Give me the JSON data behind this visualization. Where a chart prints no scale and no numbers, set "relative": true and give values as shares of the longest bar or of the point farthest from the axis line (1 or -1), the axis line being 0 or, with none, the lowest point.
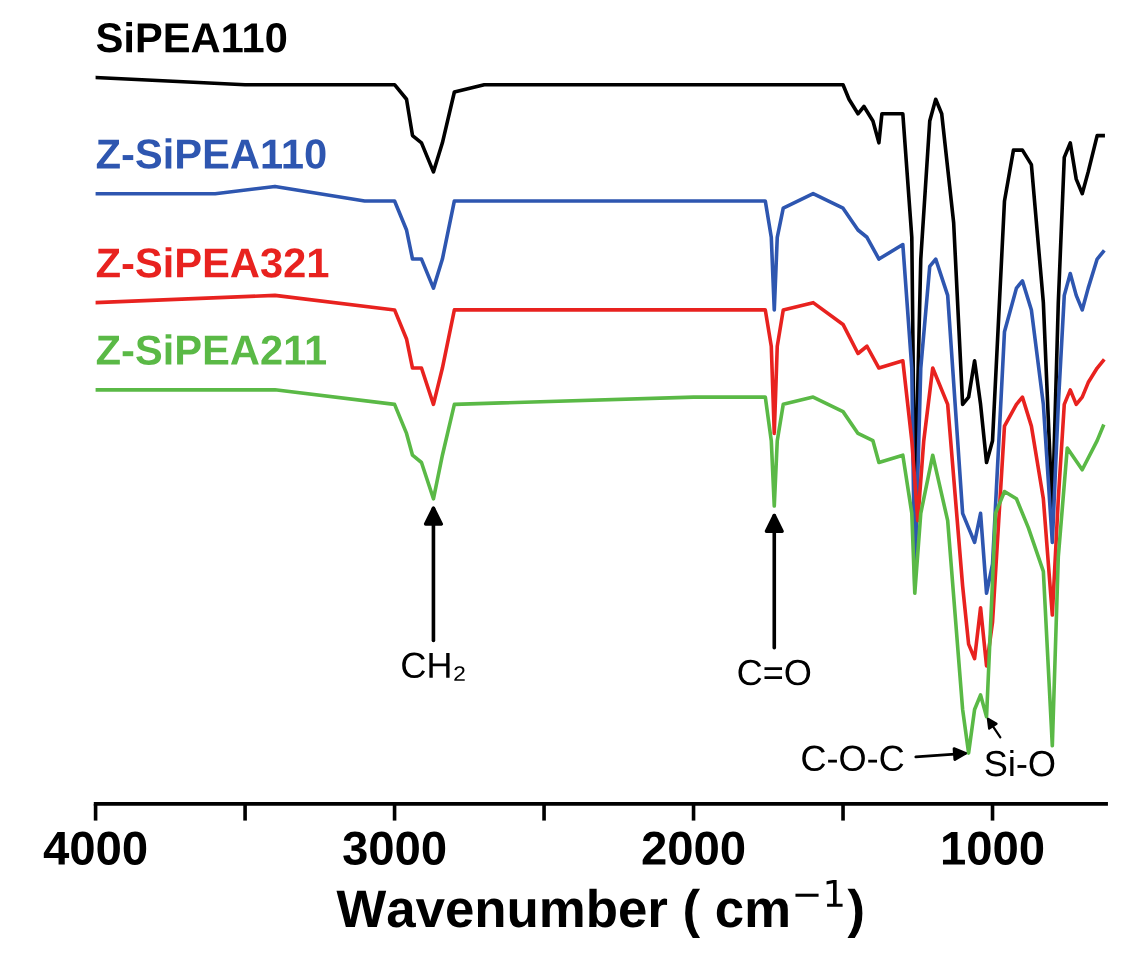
{
  "chart_data": {
    "type": "line",
    "relative": true,
    "xlabel": "Wavenumber ( cm$^{−1}$)",
    "xlim": [
      4000,
      620
    ],
    "xticks": [
      4000,
      {
        "value": 3500,
        "label": null
      },
      3000,
      {
        "value": 2500,
        "label": null
      },
      2000,
      {
        "value": 1500,
        "label": null
      },
      1000
    ],
    "tick_labels": "x",
    "grid": false,
    "legend": false,
    "x": [
      4000,
      3500,
      3000,
      2960,
      2940,
      2910,
      2870,
      2840,
      2800,
      2700,
      2000,
      1600,
      1500,
      1480,
      1450,
      1430,
      1400,
      1380,
      1370,
      1330,
      1300,
      1270,
      1260,
      1240,
      1210,
      1190,
      1170,
      1130,
      1100,
      1080,
      1060,
      1040,
      1020,
      1000,
      960,
      930,
      900,
      870,
      830,
      800,
      780,
      760,
      740,
      720,
      700,
      680,
      650,
      630
    ],
    "series": [
      {
        "name": "SiPEA110",
        "color": "#000000",
        "values": [
          1.0,
          0.99,
          0.99,
          0.97,
          0.92,
          0.91,
          0.87,
          0.91,
          0.98,
          0.99,
          0.99,
          0.99,
          0.99,
          0.97,
          0.95,
          0.96,
          0.94,
          0.91,
          0.95,
          0.95,
          0.95,
          0.78,
          0.4,
          0.75,
          0.94,
          0.97,
          0.95,
          0.8,
          0.55,
          0.56,
          0.61,
          0.55,
          0.47,
          0.5,
          0.83,
          0.9,
          0.9,
          0.88,
          0.69,
          0.4,
          0.69,
          0.89,
          0.91,
          0.86,
          0.84,
          0.87,
          0.92,
          0.92
        ]
      },
      {
        "name": "Z-SiPEA110",
        "color": "#2e56b0",
        "x": [
          4000,
          3600,
          3400,
          3100,
          3000,
          2960,
          2940,
          2910,
          2870,
          2840,
          2800,
          2700,
          2000,
          1760,
          1740,
          1730,
          1720,
          1700,
          1650,
          1600,
          1550,
          1500,
          1450,
          1420,
          1380,
          1300,
          1270,
          1260,
          1240,
          1210,
          1190,
          1150,
          1100,
          1080,
          1060,
          1040,
          1020,
          1000,
          960,
          920,
          900,
          870,
          830,
          800,
          780,
          760,
          740,
          720,
          700,
          680,
          650,
          630
        ],
        "values": [
          0.84,
          0.84,
          0.85,
          0.83,
          0.83,
          0.79,
          0.75,
          0.75,
          0.71,
          0.75,
          0.83,
          0.83,
          0.83,
          0.83,
          0.78,
          0.68,
          0.78,
          0.82,
          0.83,
          0.84,
          0.83,
          0.82,
          0.79,
          0.78,
          0.75,
          0.77,
          0.6,
          0.3,
          0.6,
          0.74,
          0.75,
          0.7,
          0.4,
          0.38,
          0.36,
          0.4,
          0.29,
          0.33,
          0.65,
          0.71,
          0.72,
          0.68,
          0.55,
          0.36,
          0.55,
          0.7,
          0.73,
          0.7,
          0.68,
          0.71,
          0.75,
          0.76
        ]
      },
      {
        "name": "Z-SiPEA321",
        "color": "#e8221f",
        "x": [
          4000,
          3400,
          3000,
          2960,
          2940,
          2910,
          2870,
          2840,
          2800,
          2000,
          1760,
          1740,
          1730,
          1720,
          1700,
          1600,
          1500,
          1450,
          1420,
          1380,
          1300,
          1270,
          1250,
          1230,
          1200,
          1150,
          1100,
          1080,
          1060,
          1040,
          1020,
          1000,
          960,
          920,
          900,
          870,
          830,
          800,
          780,
          760,
          740,
          720,
          700,
          680,
          650,
          630
        ],
        "values": [
          0.69,
          0.7,
          0.68,
          0.64,
          0.6,
          0.6,
          0.55,
          0.6,
          0.68,
          0.68,
          0.68,
          0.63,
          0.51,
          0.63,
          0.68,
          0.69,
          0.66,
          0.62,
          0.63,
          0.6,
          0.61,
          0.5,
          0.39,
          0.5,
          0.6,
          0.55,
          0.3,
          0.22,
          0.2,
          0.27,
          0.19,
          0.25,
          0.52,
          0.55,
          0.56,
          0.52,
          0.42,
          0.26,
          0.42,
          0.55,
          0.57,
          0.55,
          0.56,
          0.58,
          0.6,
          0.61
        ]
      },
      {
        "name": "Z-SiPEA211",
        "color": "#5ab946",
        "x": [
          4000,
          3400,
          3000,
          2960,
          2940,
          2910,
          2870,
          2840,
          2800,
          2000,
          1760,
          1740,
          1730,
          1720,
          1700,
          1600,
          1500,
          1450,
          1400,
          1380,
          1300,
          1270,
          1260,
          1240,
          1200,
          1150,
          1100,
          1080,
          1060,
          1040,
          1020,
          990,
          960,
          920,
          880,
          830,
          800,
          780,
          750,
          700,
          650,
          630
        ],
        "values": [
          0.57,
          0.57,
          0.55,
          0.51,
          0.48,
          0.47,
          0.42,
          0.48,
          0.55,
          0.56,
          0.56,
          0.5,
          0.41,
          0.5,
          0.55,
          0.56,
          0.54,
          0.51,
          0.5,
          0.47,
          0.48,
          0.4,
          0.29,
          0.4,
          0.48,
          0.39,
          0.13,
          0.07,
          0.13,
          0.15,
          0.12,
          0.4,
          0.43,
          0.42,
          0.38,
          0.32,
          0.08,
          0.34,
          0.49,
          0.46,
          0.5,
          0.52
        ]
      }
    ],
    "annotations": [
      {
        "text": "CH₂",
        "x": 2870,
        "y": 0.42
      },
      {
        "text": "C=O",
        "x": 1730,
        "y": 0.41
      },
      {
        "text": "C-O-C",
        "x": 1080,
        "y": 0.07
      },
      {
        "text": "Si-O",
        "x": 1020,
        "y": 0.12
      }
    ]
  }
}
